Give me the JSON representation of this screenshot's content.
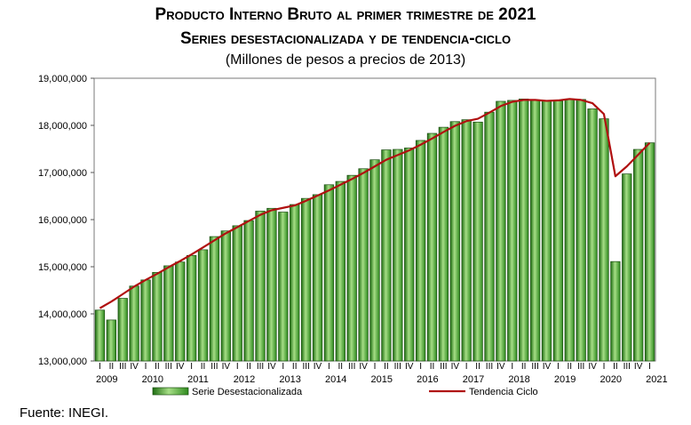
{
  "chart_data": {
    "type": "bar",
    "title": "Producto Interno Bruto al primer trimestre de 2021",
    "subtitle": "Series desestacionalizada y de tendencia-ciclo",
    "units": "(Millones de pesos a precios de 2013)",
    "ylim": [
      13000000,
      19000000
    ],
    "yticks": [
      13000000,
      14000000,
      15000000,
      16000000,
      17000000,
      18000000,
      19000000
    ],
    "ytick_labels": [
      "13,000,000",
      "14,000,000",
      "15,000,000",
      "16,000,000",
      "17,000,000",
      "18,000,000",
      "19,000,000"
    ],
    "years": [
      "2009",
      "2010",
      "2011",
      "2012",
      "2013",
      "2014",
      "2015",
      "2016",
      "2017",
      "2018",
      "2019",
      "2020",
      "2021"
    ],
    "quarter_labels": [
      "I",
      "II",
      "III",
      "IV"
    ],
    "categories": [
      "2009-I",
      "2009-II",
      "2009-III",
      "2009-IV",
      "2010-I",
      "2010-II",
      "2010-III",
      "2010-IV",
      "2011-I",
      "2011-II",
      "2011-III",
      "2011-IV",
      "2012-I",
      "2012-II",
      "2012-III",
      "2012-IV",
      "2013-I",
      "2013-II",
      "2013-III",
      "2013-IV",
      "2014-I",
      "2014-II",
      "2014-III",
      "2014-IV",
      "2015-I",
      "2015-II",
      "2015-III",
      "2015-IV",
      "2016-I",
      "2016-II",
      "2016-III",
      "2016-IV",
      "2017-I",
      "2017-II",
      "2017-III",
      "2017-IV",
      "2018-I",
      "2018-II",
      "2018-III",
      "2018-IV",
      "2019-I",
      "2019-II",
      "2019-III",
      "2019-IV",
      "2020-I",
      "2020-II",
      "2020-III",
      "2020-IV",
      "2021-I"
    ],
    "series": [
      {
        "name": "Serie Desestacionalizada",
        "type": "bar",
        "color": "#3a9a2a",
        "values": [
          14080000,
          13870000,
          14330000,
          14590000,
          14720000,
          14880000,
          15020000,
          15100000,
          15240000,
          15360000,
          15640000,
          15760000,
          15870000,
          15980000,
          16180000,
          16240000,
          16160000,
          16320000,
          16450000,
          16530000,
          16740000,
          16810000,
          16940000,
          17080000,
          17270000,
          17480000,
          17490000,
          17520000,
          17680000,
          17830000,
          17960000,
          18080000,
          18120000,
          18070000,
          18280000,
          18510000,
          18530000,
          18560000,
          18530000,
          18520000,
          18520000,
          18550000,
          18550000,
          18350000,
          18140000,
          15110000,
          16970000,
          17490000,
          17630000
        ]
      },
      {
        "name": "Tendencia Ciclo",
        "type": "line",
        "color": "#b01010",
        "values": [
          14120000,
          14260000,
          14420000,
          14580000,
          14720000,
          14850000,
          14990000,
          15120000,
          15260000,
          15410000,
          15560000,
          15710000,
          15840000,
          15970000,
          16100000,
          16200000,
          16250000,
          16300000,
          16400000,
          16510000,
          16620000,
          16740000,
          16860000,
          16990000,
          17130000,
          17270000,
          17370000,
          17470000,
          17590000,
          17720000,
          17860000,
          17990000,
          18090000,
          18140000,
          18270000,
          18410000,
          18500000,
          18540000,
          18540000,
          18520000,
          18530000,
          18560000,
          18540000,
          18470000,
          18240000,
          16920000,
          17130000,
          17380000,
          17630000
        ]
      }
    ],
    "legend_position": "bottom",
    "grid": false
  },
  "source": "Fuente: INEGI."
}
